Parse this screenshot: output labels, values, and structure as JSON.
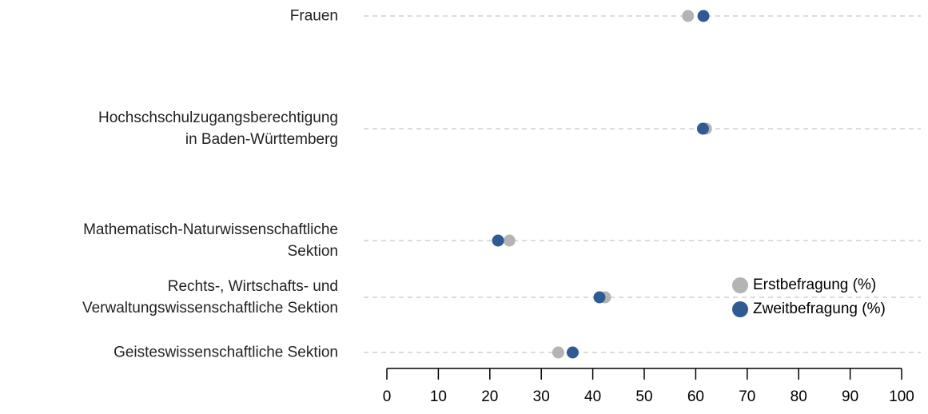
{
  "chart_data": {
    "type": "dot",
    "categories": [
      "Frauen",
      "Hochschschulzugangsberechtigung\nin Baden-Württemberg",
      "Mathematisch-Naturwissenschaftliche\nSektion",
      "Rechts-, Wirtschafts- und\nVerwaltungswissenschaftliche Sektion",
      "Geisteswissenschaftliche Sektion"
    ],
    "series": [
      {
        "name": "Erstbefragung (%)",
        "color": "#b4b4b4",
        "values": [
          58.5,
          62,
          23.8,
          42.4,
          33.3
        ]
      },
      {
        "name": "Zweitbefragung (%)",
        "color": "#2e5b94",
        "values": [
          61.5,
          61.4,
          21.6,
          41.3,
          36.1
        ]
      }
    ],
    "xlim": [
      0,
      100
    ],
    "xticks": [
      0,
      10,
      20,
      30,
      40,
      50,
      60,
      70,
      80,
      90,
      100
    ],
    "grid": true,
    "legend": "right"
  }
}
